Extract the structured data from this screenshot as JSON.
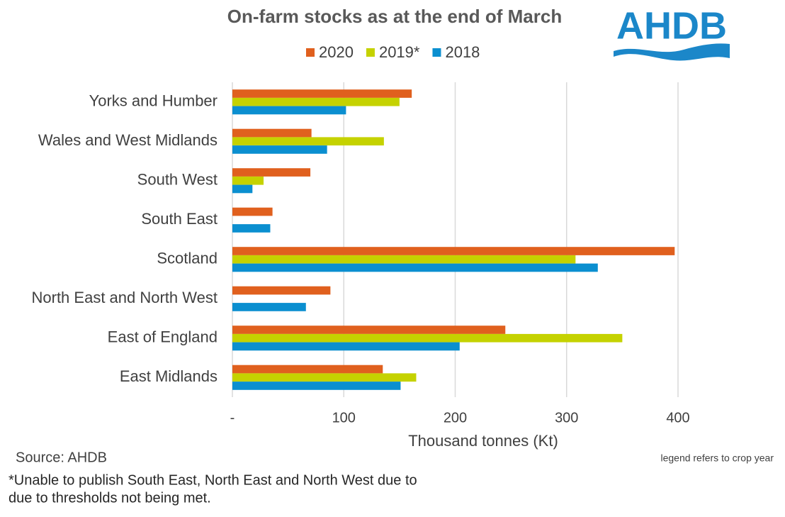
{
  "chart_data": {
    "type": "bar",
    "orientation": "horizontal",
    "title": "On-farm stocks as at the end of March",
    "logo": "AHDB",
    "categories": [
      "Yorks and Humber",
      "Wales and West Midlands",
      "South West",
      "South East",
      "Scotland",
      "North East and North West",
      "East of England",
      "East Midlands"
    ],
    "series": [
      {
        "name": "2020",
        "color": "#e0601e",
        "values": [
          161,
          71,
          70,
          36,
          397,
          88,
          245,
          135
        ]
      },
      {
        "name": "2019*",
        "color": "#c5d200",
        "values": [
          150,
          136,
          28,
          null,
          308,
          null,
          350,
          165
        ]
      },
      {
        "name": "2018",
        "color": "#0b8fd0",
        "values": [
          102,
          85,
          18,
          34,
          328,
          66,
          204,
          151
        ]
      }
    ],
    "xlim": [
      0,
      400
    ],
    "xticks": [
      {
        "value": 0,
        "label": "-"
      },
      100,
      200,
      300,
      400
    ],
    "x_label": "Thousand tonnes (Kt)",
    "grid": true,
    "legend": "top",
    "source": "Source: AHDB",
    "note": "legend refers to crop year",
    "footnote": [
      "*Unable to publish South East, North East and North West due to",
      "due to thresholds not being met."
    ]
  }
}
